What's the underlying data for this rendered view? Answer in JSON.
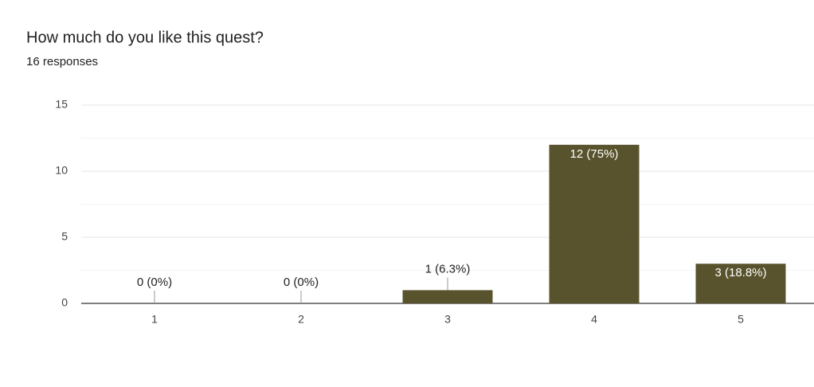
{
  "chart_data": {
    "type": "bar",
    "title": "How much do you like this quest?",
    "subtitle": "16 responses",
    "categories": [
      "1",
      "2",
      "3",
      "4",
      "5"
    ],
    "values": [
      0,
      0,
      1,
      12,
      3
    ],
    "value_labels": [
      "0 (0%)",
      "0 (0%)",
      "1 (6.3%)",
      "12 (75%)",
      "3 (18.8%)"
    ],
    "color": "#59532d",
    "ylim": [
      0,
      15
    ],
    "yticks": [
      0,
      5,
      10,
      15
    ],
    "minor_yticks": [
      2.5,
      7.5,
      12.5
    ],
    "grid": true
  }
}
